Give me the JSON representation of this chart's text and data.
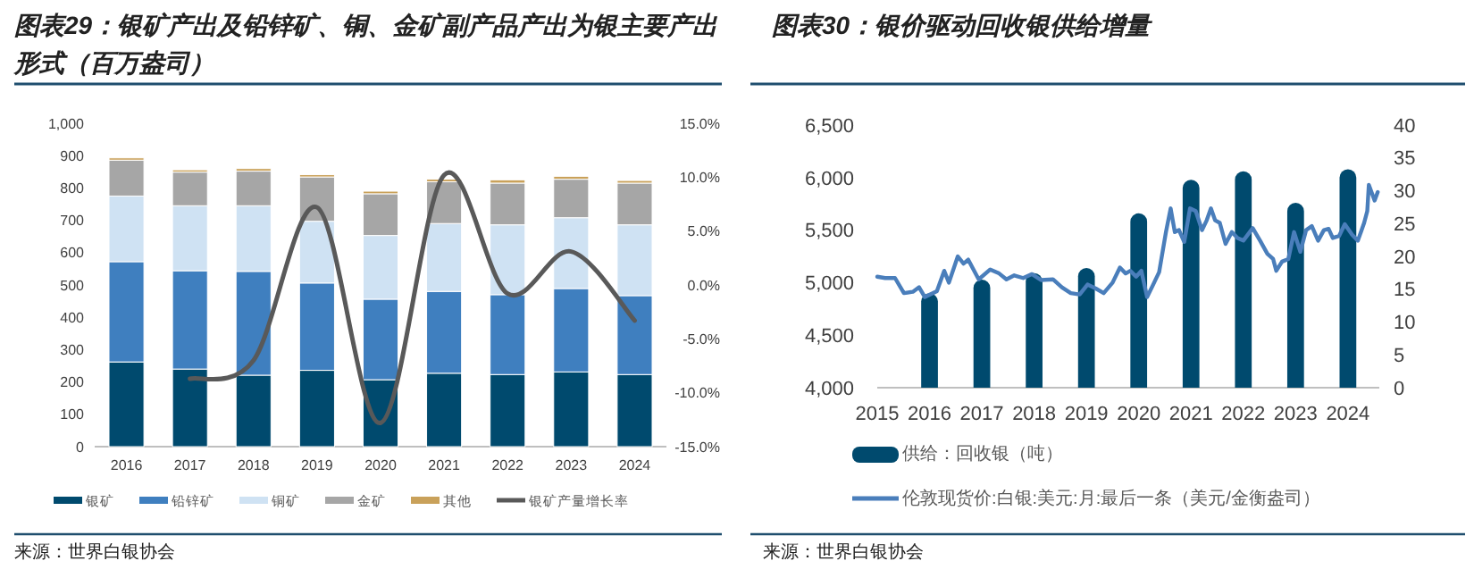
{
  "chart_data": [
    {
      "type": "bar",
      "title": "图表29：银矿产出及铅锌矿、铜、金矿副产品产出为银主要产出形式（百万盎司）",
      "stacked": true,
      "legend": "bottom",
      "categories": [
        "2016",
        "2017",
        "2018",
        "2019",
        "2020",
        "2021",
        "2022",
        "2023",
        "2024"
      ],
      "series": [
        {
          "name": "银矿",
          "color": "#004a6e",
          "values": [
            262,
            240,
            221,
            236,
            207,
            227,
            223,
            231,
            223
          ]
        },
        {
          "name": "铅锌矿",
          "color": "#3f7fbf",
          "values": [
            310,
            304,
            321,
            270,
            249,
            253,
            247,
            258,
            244
          ]
        },
        {
          "name": "铜矿",
          "color": "#cfe2f3",
          "values": [
            203,
            201,
            203,
            191,
            197,
            210,
            216,
            219,
            219
          ]
        },
        {
          "name": "金矿",
          "color": "#a6a6a6",
          "values": [
            111,
            104,
            107,
            137,
            129,
            129,
            129,
            119,
            129
          ]
        },
        {
          "name": "其他",
          "color": "#c9a15a",
          "values": [
            7,
            7,
            8,
            7,
            8,
            8,
            10,
            9,
            8
          ]
        },
        {
          "name": "银矿产量增长率",
          "type": "line",
          "axis": "y2",
          "color": "#595959",
          "values": [
            null,
            -8.7,
            -7.0,
            7.2,
            -12.8,
            10.2,
            -0.8,
            3.1,
            -3.3
          ]
        }
      ],
      "ylim": [
        0,
        1000
      ],
      "yticks": [
        0,
        100,
        200,
        300,
        400,
        500,
        600,
        700,
        800,
        900,
        {
          "value": 1000,
          "label": "1,000"
        }
      ],
      "y2lim": [
        -15,
        15
      ],
      "y2ticks": [
        {
          "value": -15,
          "label": "-15.0%"
        },
        {
          "value": -10,
          "label": "-10.0%"
        },
        {
          "value": -5,
          "label": "-5.0%"
        },
        {
          "value": 0,
          "label": "0.0%"
        },
        {
          "value": 5,
          "label": "5.0%"
        },
        {
          "value": 10,
          "label": "10.0%"
        },
        {
          "value": 15,
          "label": "15.0%"
        }
      ],
      "annotations": [
        "来源：世界白银协会"
      ]
    },
    {
      "type": "bar",
      "title": "图表30：银价驱动回收银供给增量",
      "legend": "bottom",
      "series": [
        {
          "name": "供给：回收银（吨）",
          "color": "#004a6e",
          "x": [
            2016,
            2017,
            2018,
            2019,
            2020,
            2021,
            2022,
            2023,
            2024
          ],
          "values": [
            4900,
            5030,
            5090,
            5140,
            5660,
            5980,
            6060,
            5760,
            6080
          ]
        },
        {
          "name": "伦敦现货价:白银:美元:月:最后一条（美元/金衡盎司）",
          "type": "line",
          "axis": "y2",
          "color": "#4a7ebb",
          "x": [
            2015.0,
            2015.15,
            2015.34,
            2015.51,
            2015.68,
            2015.8,
            2015.91,
            2016.14,
            2016.28,
            2016.37,
            2016.54,
            2016.65,
            2016.74,
            2016.94,
            2017.16,
            2017.33,
            2017.47,
            2017.62,
            2017.79,
            2017.96,
            2018.13,
            2018.36,
            2018.53,
            2018.7,
            2018.87,
            2019.02,
            2019.18,
            2019.33,
            2019.5,
            2019.64,
            2019.75,
            2019.84,
            2019.95,
            2020.05,
            2020.16,
            2020.27,
            2020.39,
            2020.52,
            2020.61,
            2020.69,
            2020.77,
            2020.87,
            2020.98,
            2021.09,
            2021.21,
            2021.3,
            2021.38,
            2021.46,
            2021.55,
            2021.66,
            2021.78,
            2021.89,
            2022.0,
            2022.18,
            2022.32,
            2022.46,
            2022.57,
            2022.63,
            2022.74,
            2022.86,
            2022.97,
            2023.09,
            2023.2,
            2023.31,
            2023.43,
            2023.54,
            2023.63,
            2023.71,
            2023.83,
            2023.94,
            2024.08,
            2024.19,
            2024.31,
            2024.37,
            2024.4,
            2024.46,
            2024.51,
            2024.57
          ],
          "values": [
            16.9,
            16.7,
            16.7,
            14.4,
            14.6,
            15.3,
            13.8,
            14.7,
            17.8,
            16.0,
            20.0,
            18.9,
            19.5,
            16.5,
            18.0,
            17.4,
            16.5,
            17.1,
            16.7,
            17.3,
            16.4,
            16.5,
            15.3,
            14.4,
            14.2,
            15.7,
            15.1,
            14.4,
            16.0,
            18.3,
            17.4,
            17.8,
            16.9,
            17.8,
            13.8,
            15.6,
            17.6,
            23.7,
            27.3,
            23.7,
            24.0,
            22.2,
            27.3,
            26.9,
            24.0,
            25.5,
            27.3,
            25.5,
            25.1,
            21.9,
            23.7,
            22.8,
            22.4,
            24.3,
            22.4,
            20.4,
            19.6,
            17.8,
            19.2,
            19.6,
            23.7,
            20.7,
            24.0,
            24.6,
            22.4,
            24.0,
            24.2,
            22.8,
            23.1,
            24.9,
            23.3,
            22.4,
            25.1,
            26.9,
            30.9,
            29.6,
            28.5,
            29.8
          ]
        }
      ],
      "xlim": [
        2015,
        2024.6
      ],
      "xticks": [
        2015,
        2016,
        2017,
        2018,
        2019,
        2020,
        2021,
        2022,
        2023,
        2024
      ],
      "ylim": [
        4000,
        6500
      ],
      "yticks": [
        {
          "value": 4000,
          "label": "4,000"
        },
        {
          "value": 4500,
          "label": "4,500"
        },
        {
          "value": 5000,
          "label": "5,000"
        },
        {
          "value": 5500,
          "label": "5,500"
        },
        {
          "value": 6000,
          "label": "6,000"
        },
        {
          "value": 6500,
          "label": "6,500"
        }
      ],
      "y2lim": [
        0,
        40
      ],
      "y2ticks": [
        0,
        5,
        10,
        15,
        20,
        25,
        30,
        35,
        40
      ],
      "annotations": [
        "来源：世界白银协会"
      ]
    }
  ]
}
